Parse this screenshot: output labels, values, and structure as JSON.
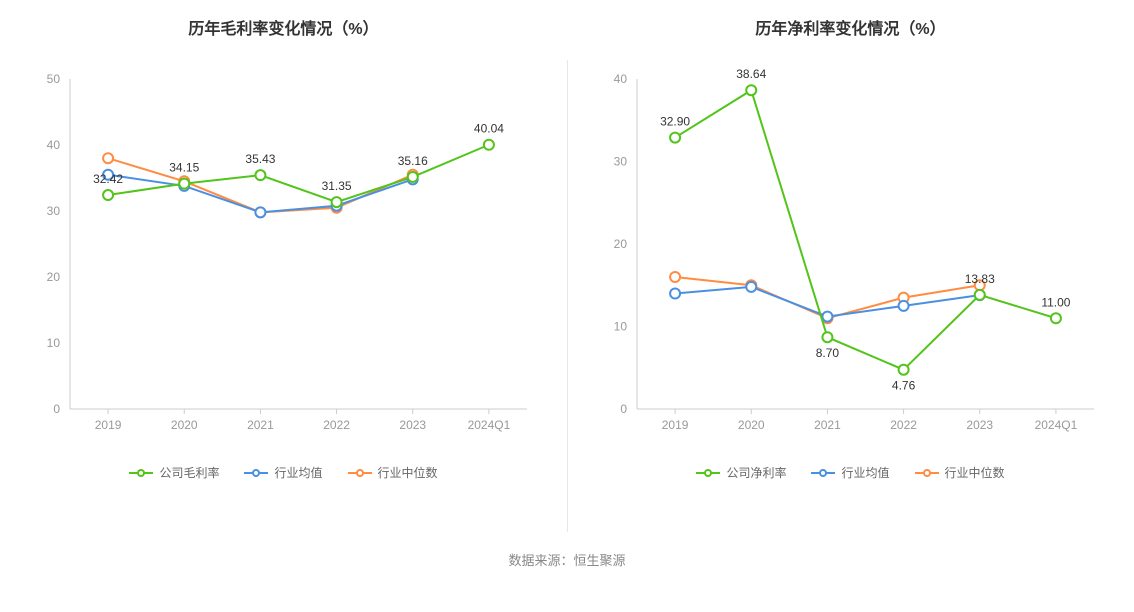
{
  "source_label": "数据来源：恒生聚源",
  "colors": {
    "company": "#52c41a",
    "industry_avg": "#4a90e2",
    "industry_median": "#ff8c42",
    "axis_text": "#999999",
    "grid": "#f0f0f0",
    "axis_line": "#cccccc",
    "title": "#333333",
    "legend_text": "#666666",
    "background": "#ffffff"
  },
  "typography": {
    "title_fontsize": 16,
    "axis_fontsize": 12,
    "legend_fontsize": 12,
    "data_label_fontsize": 12
  },
  "left_chart": {
    "title": "历年毛利率变化情况（%）",
    "type": "line",
    "categories": [
      "2019",
      "2020",
      "2021",
      "2022",
      "2023",
      "2024Q1"
    ],
    "ylim": [
      0,
      50
    ],
    "ytick_step": 10,
    "yticks": [
      0,
      10,
      20,
      30,
      40,
      50
    ],
    "marker_size": 5,
    "line_width": 2,
    "series": [
      {
        "name": "公司毛利率",
        "color": "#52c41a",
        "values": [
          32.42,
          34.15,
          35.43,
          31.35,
          35.16,
          40.04
        ],
        "show_labels": [
          true,
          true,
          true,
          true,
          true,
          true
        ]
      },
      {
        "name": "行业均值",
        "color": "#4a90e2",
        "values": [
          35.5,
          33.8,
          29.8,
          30.8,
          34.8,
          null
        ],
        "show_labels": [
          false,
          false,
          false,
          false,
          false,
          false
        ]
      },
      {
        "name": "行业中位数",
        "color": "#ff8c42",
        "values": [
          38.0,
          34.5,
          29.8,
          30.5,
          35.5,
          null
        ],
        "show_labels": [
          false,
          false,
          false,
          false,
          false,
          false
        ]
      }
    ],
    "legend": [
      "公司毛利率",
      "行业均值",
      "行业中位数"
    ]
  },
  "right_chart": {
    "title": "历年净利率变化情况（%）",
    "type": "line",
    "categories": [
      "2019",
      "2020",
      "2021",
      "2022",
      "2023",
      "2024Q1"
    ],
    "ylim": [
      0,
      40
    ],
    "ytick_step": 10,
    "yticks": [
      0,
      10,
      20,
      30,
      40
    ],
    "marker_size": 5,
    "line_width": 2,
    "series": [
      {
        "name": "公司净利率",
        "color": "#52c41a",
        "values": [
          32.9,
          38.64,
          8.7,
          4.76,
          13.83,
          11.0
        ],
        "show_labels": [
          true,
          true,
          true,
          true,
          true,
          true
        ]
      },
      {
        "name": "行业均值",
        "color": "#4a90e2",
        "values": [
          14.0,
          14.8,
          11.2,
          12.5,
          13.8,
          null
        ],
        "show_labels": [
          false,
          false,
          false,
          false,
          false,
          false
        ]
      },
      {
        "name": "行业中位数",
        "color": "#ff8c42",
        "values": [
          16.0,
          15.0,
          11.0,
          13.5,
          15.0,
          null
        ],
        "show_labels": [
          false,
          false,
          false,
          false,
          false,
          false
        ]
      }
    ],
    "legend": [
      "公司净利率",
      "行业均值",
      "行业中位数"
    ]
  }
}
